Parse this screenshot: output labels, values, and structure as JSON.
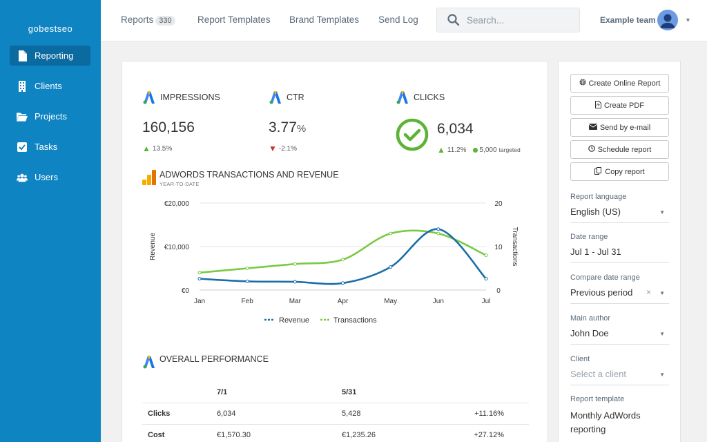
{
  "sidebar": {
    "brand": "gobestseo",
    "items": [
      {
        "label": "Reporting",
        "icon": "file-icon",
        "active": true
      },
      {
        "label": "Clients",
        "icon": "building-icon"
      },
      {
        "label": "Projects",
        "icon": "folder-icon"
      },
      {
        "label": "Tasks",
        "icon": "checkbox-icon"
      },
      {
        "label": "Users",
        "icon": "users-icon"
      }
    ]
  },
  "topbar": {
    "tabs": [
      "Reports",
      "Report Templates",
      "Brand Templates",
      "Send Log"
    ],
    "reports_count": "330",
    "search_placeholder": "Search...",
    "team": "Example team"
  },
  "metrics": {
    "impressions": {
      "label": "IMPRESSIONS",
      "value": "160,156",
      "change": "13.5%"
    },
    "ctr": {
      "label": "CTR",
      "value": "3.77",
      "unit": "%",
      "change": "-2.1%"
    },
    "clicks": {
      "label": "CLICKS",
      "value": "6,034",
      "change": "11.2%",
      "target": "5,000",
      "target_label": "targeted"
    }
  },
  "transactions_section": {
    "title": "ADWORDS TRANSACTIONS AND REVENUE",
    "subtitle": "YEAR-TO-DATE"
  },
  "chart_data": {
    "type": "line",
    "categories": [
      "Jan",
      "Feb",
      "Mar",
      "Apr",
      "May",
      "Jun",
      "Jul"
    ],
    "series": [
      {
        "name": "Revenue",
        "axis": "left",
        "color": "#1a6fa8",
        "values": [
          2600,
          2000,
          1900,
          1600,
          5300,
          14000,
          2600
        ]
      },
      {
        "name": "Transactions",
        "axis": "right",
        "color": "#7ac943",
        "values": [
          4,
          5,
          6,
          7,
          13,
          13,
          8
        ]
      }
    ],
    "ylabel": "Revenue",
    "y2label": "Transactions",
    "yticks": [
      "€0",
      "€10,000",
      "€20,000"
    ],
    "ylim": [
      0,
      20000
    ],
    "y2ticks": [
      "0",
      "10",
      "20"
    ],
    "y2lim": [
      0,
      20
    ],
    "grid": true,
    "legend": "bottom"
  },
  "performance": {
    "title": "OVERALL PERFORMANCE",
    "columns": [
      "",
      "7/1",
      "5/31",
      ""
    ],
    "rows": [
      {
        "label": "Clicks",
        "a": "6,034",
        "b": "5,428",
        "pct": "+11.16%",
        "dir": "up"
      },
      {
        "label": "Cost",
        "a": "€1,570.30",
        "b": "€1,235.26",
        "pct": "+27.12%",
        "dir": "down"
      }
    ]
  },
  "actions": {
    "online": "Create Online Report",
    "pdf": "Create PDF",
    "email": "Send by e-mail",
    "schedule": "Schedule report",
    "copy": "Copy report"
  },
  "fields": {
    "language": {
      "label": "Report language",
      "value": "English (US)"
    },
    "date_range": {
      "label": "Date range",
      "value": "Jul 1 - Jul 31"
    },
    "compare": {
      "label": "Compare date range",
      "value": "Previous period"
    },
    "author": {
      "label": "Main author",
      "value": "John Doe"
    },
    "client": {
      "label": "Client",
      "placeholder": "Select a client"
    },
    "template": {
      "label": "Report template",
      "value": "Monthly AdWords reporting"
    }
  },
  "colors": {
    "sidebar": "#0f84c2",
    "accent_green": "#5cb335",
    "negative_red": "#c0392b"
  }
}
